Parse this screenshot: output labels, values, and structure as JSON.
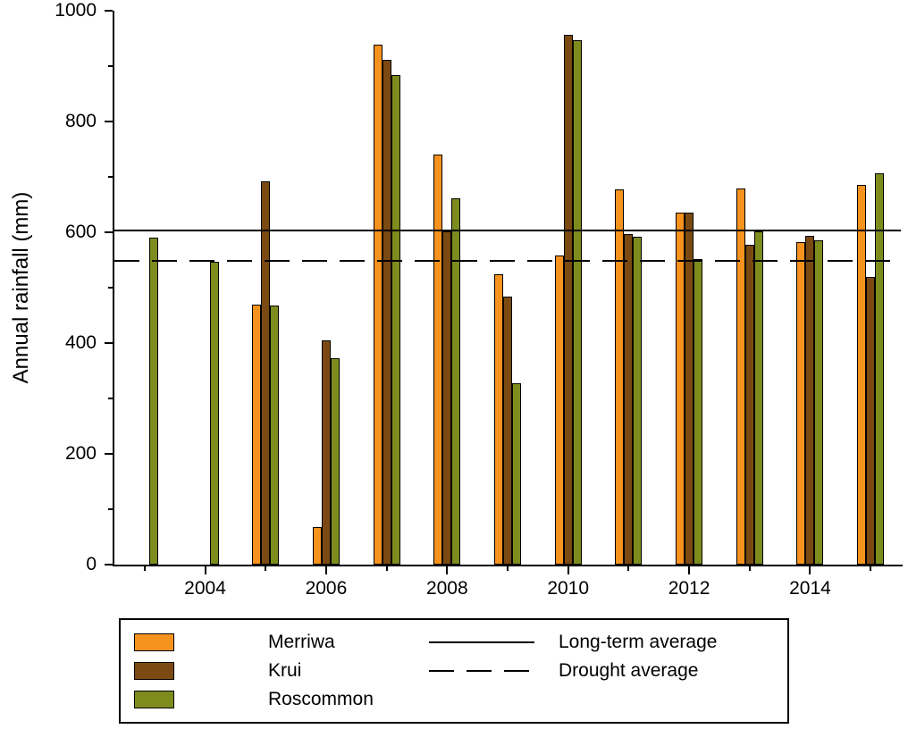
{
  "chart_data": {
    "type": "bar",
    "title": "",
    "xlabel": "",
    "ylabel": "Annual rainfall (mm)",
    "ylim": [
      0,
      1000
    ],
    "y_ticks": [
      0,
      200,
      400,
      600,
      800,
      1000
    ],
    "y_minor_ticks": [
      100,
      300,
      500,
      700,
      900
    ],
    "years": [
      2003,
      2004,
      2005,
      2006,
      2007,
      2008,
      2009,
      2010,
      2011,
      2012,
      2013,
      2014,
      2015
    ],
    "x_labeled_years": [
      2004,
      2006,
      2008,
      2010,
      2012,
      2014
    ],
    "grid": false,
    "legend_position": "bottom",
    "background": "#FFFFFF",
    "axis_color": "#000000",
    "series": [
      {
        "name": "Merriwa",
        "color": "#F6921E",
        "values": [
          null,
          null,
          470,
          68,
          938,
          741,
          524,
          558,
          677,
          636,
          679,
          583,
          685
        ]
      },
      {
        "name": "Krui",
        "color": "#7B4A12",
        "values": [
          null,
          null,
          692,
          405,
          911,
          601,
          484,
          956,
          596,
          636,
          578,
          594,
          520
        ]
      },
      {
        "name": "Roscommon",
        "color": "#7E8C1E",
        "values": [
          590,
          546,
          468,
          373,
          884,
          661,
          327,
          946,
          592,
          551,
          601,
          586,
          707
        ]
      }
    ],
    "reference_lines": [
      {
        "name": "Long-term average",
        "value": 603,
        "style": "solid"
      },
      {
        "name": "Drought average",
        "value": 549,
        "style": "dashed"
      }
    ]
  }
}
